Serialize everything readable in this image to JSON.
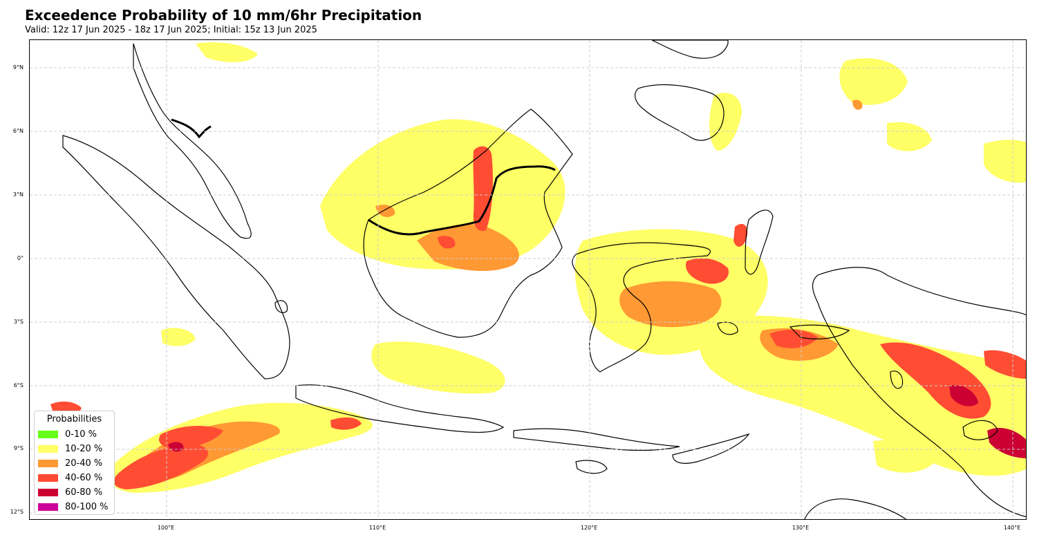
{
  "title": "Exceedence Probability of 10 mm/6hr Precipitation",
  "subtitle": "Valid: 12z 17 Jun 2025 - 18z 17 Jun 2025; Initial: 15z 13 Jun 2025",
  "map": {
    "region": "Indonesia / Maritime Continent",
    "projection": "PlateCarree",
    "extent": {
      "lon_min": 93.5,
      "lon_max": 140.7,
      "lat_min": -12.3,
      "lat_max": 10.4
    },
    "gridlines": true,
    "lat_ticks": [
      {
        "value": 9,
        "label": "9°N"
      },
      {
        "value": 6,
        "label": "6°N"
      },
      {
        "value": 3,
        "label": "3°N"
      },
      {
        "value": 0,
        "label": "0°"
      },
      {
        "value": -3,
        "label": "3°S"
      },
      {
        "value": -6,
        "label": "6°S"
      },
      {
        "value": -9,
        "label": "9°S"
      },
      {
        "value": -12,
        "label": "12°S"
      }
    ],
    "lon_ticks": [
      {
        "value": 100,
        "label": "100°E"
      },
      {
        "value": 110,
        "label": "110°E"
      },
      {
        "value": 120,
        "label": "120°E"
      },
      {
        "value": 130,
        "label": "130°E"
      },
      {
        "value": 140,
        "label": "140°E"
      }
    ]
  },
  "legend": {
    "title": "Probabilities",
    "placement": "lower-left",
    "items": [
      {
        "label": "0-10 %",
        "color": "#66ff19"
      },
      {
        "label": "10-20 %",
        "color": "#ffff66"
      },
      {
        "label": "20-40 %",
        "color": "#ff9933"
      },
      {
        "label": "40-60 %",
        "color": "#ff4d33"
      },
      {
        "label": "60-80 %",
        "color": "#cc0033"
      },
      {
        "label": "80-100 %",
        "color": "#cc0099"
      }
    ]
  },
  "colors": {
    "coastline": "#000000",
    "gridline": "#cccccc",
    "background": "#ffffff"
  }
}
